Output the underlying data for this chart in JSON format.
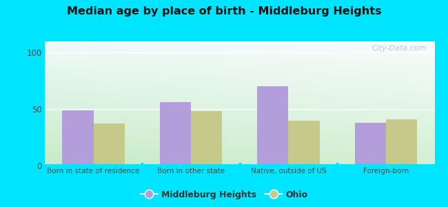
{
  "title": "Median age by place of birth - Middleburg Heights",
  "categories": [
    "Born in state of residence",
    "Born in other state",
    "Native, outside of US",
    "Foreign-born"
  ],
  "middleburg_values": [
    49,
    56,
    70,
    38
  ],
  "ohio_values": [
    37,
    48,
    40,
    41
  ],
  "middleburg_color": "#b39ddb",
  "ohio_color": "#c5c98a",
  "ylim": [
    0,
    110
  ],
  "yticks": [
    0,
    50,
    100
  ],
  "background_outer": "#00e5ff",
  "legend_labels": [
    "Middleburg Heights",
    "Ohio"
  ],
  "watermark": "City-Data.com",
  "bar_width": 0.32,
  "gradient_colors": [
    "#c8eac8",
    "#d8f0e8",
    "#e8f8f4",
    "#f0fbf8"
  ],
  "gradient_right_colors": [
    "#d0eeee",
    "#e0f4f4",
    "#eefafa",
    "#f5fefe"
  ]
}
